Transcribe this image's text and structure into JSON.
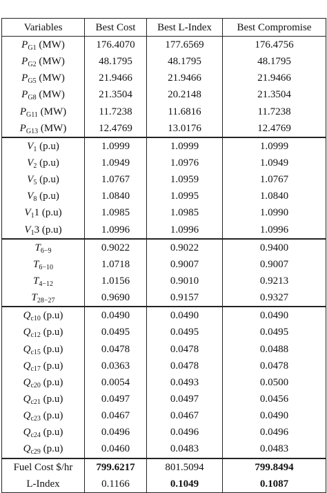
{
  "table": {
    "header": [
      "Variables",
      "Best Cost",
      "Best L-Index",
      "Best Compromise"
    ],
    "groups": [
      {
        "rows": [
          {
            "var": {
              "sym": "P",
              "sub": "G1",
              "rest": " (MW)"
            },
            "values": [
              "176.4070",
              "177.6569",
              "176.4756"
            ]
          },
          {
            "var": {
              "sym": "P",
              "sub": "G2",
              "rest": " (MW)"
            },
            "values": [
              "48.1795",
              "48.1795",
              "48.1795"
            ]
          },
          {
            "var": {
              "sym": "P",
              "sub": "G5",
              "rest": " (MW)"
            },
            "values": [
              "21.9466",
              "21.9466",
              "21.9466"
            ]
          },
          {
            "var": {
              "sym": "P",
              "sub": "G8",
              "rest": " (MW)"
            },
            "values": [
              "21.3504",
              "20.2148",
              "21.3504"
            ]
          },
          {
            "var": {
              "sym": "P",
              "sub": "G11",
              "rest": " (MW)"
            },
            "values": [
              "11.7238",
              "11.6816",
              "11.7238"
            ]
          },
          {
            "var": {
              "sym": "P",
              "sub": "G13",
              "rest": " (MW)"
            },
            "values": [
              "12.4769",
              "13.0176",
              "12.4769"
            ]
          }
        ]
      },
      {
        "rows": [
          {
            "var": {
              "sym": "V",
              "sub": "1",
              "rest": " (p.u)"
            },
            "values": [
              "1.0999",
              "1.0999",
              "1.0999"
            ]
          },
          {
            "var": {
              "sym": "V",
              "sub": "2",
              "rest": " (p.u)"
            },
            "values": [
              "1.0949",
              "1.0976",
              "1.0949"
            ]
          },
          {
            "var": {
              "sym": "V",
              "sub": "5",
              "rest": " (p.u)"
            },
            "values": [
              "1.0767",
              "1.0959",
              "1.0767"
            ]
          },
          {
            "var": {
              "sym": "V",
              "sub": "8",
              "rest": " (p.u)"
            },
            "values": [
              "1.0840",
              "1.0995",
              "1.0840"
            ]
          },
          {
            "var": {
              "sym": "V",
              "sub": "1",
              "rest": "1 (p.u)"
            },
            "values": [
              "1.0985",
              "1.0985",
              "1.0990"
            ]
          },
          {
            "var": {
              "sym": "V",
              "sub": "1",
              "rest": "3 (p.u)"
            },
            "values": [
              "1.0996",
              "1.0996",
              "1.0996"
            ]
          }
        ]
      },
      {
        "rows": [
          {
            "var": {
              "sym": "T",
              "sub": "6−9",
              "rest": ""
            },
            "values": [
              "0.9022",
              "0.9022",
              "0.9400"
            ]
          },
          {
            "var": {
              "sym": "T",
              "sub": "6−10",
              "rest": ""
            },
            "values": [
              "1.0718",
              "0.9007",
              "0.9007"
            ]
          },
          {
            "var": {
              "sym": "T",
              "sub": "4−12",
              "rest": ""
            },
            "values": [
              "1.0156",
              "0.9010",
              "0.9213"
            ]
          },
          {
            "var": {
              "sym": "T",
              "sub": "28−27",
              "rest": ""
            },
            "values": [
              "0.9690",
              "0.9157",
              "0.9327"
            ]
          }
        ]
      },
      {
        "rows": [
          {
            "var": {
              "sym": "Q",
              "sub": "c10",
              "rest": " (p.u)"
            },
            "values": [
              "0.0490",
              "0.0490",
              "0.0490"
            ]
          },
          {
            "var": {
              "sym": "Q",
              "sub": "c12",
              "rest": " (p.u)"
            },
            "values": [
              "0.0495",
              "0.0495",
              "0.0495"
            ]
          },
          {
            "var": {
              "sym": "Q",
              "sub": "c15",
              "rest": " (p.u)"
            },
            "values": [
              "0.0478",
              "0.0478",
              "0.0488"
            ]
          },
          {
            "var": {
              "sym": "Q",
              "sub": "c17",
              "rest": " (p.u)"
            },
            "values": [
              "0.0363",
              "0.0478",
              "0.0478"
            ]
          },
          {
            "var": {
              "sym": "Q",
              "sub": "c20",
              "rest": " (p.u)"
            },
            "values": [
              "0.0054",
              "0.0493",
              "0.0500"
            ]
          },
          {
            "var": {
              "sym": "Q",
              "sub": "c21",
              "rest": " (p.u)"
            },
            "values": [
              "0.0497",
              "0.0497",
              "0.0456"
            ]
          },
          {
            "var": {
              "sym": "Q",
              "sub": "c23",
              "rest": " (p.u)"
            },
            "values": [
              "0.0467",
              "0.0467",
              "0.0490"
            ]
          },
          {
            "var": {
              "sym": "Q",
              "sub": "c24",
              "rest": " (p.u)"
            },
            "values": [
              "0.0496",
              "0.0496",
              "0.0496"
            ]
          },
          {
            "var": {
              "sym": "Q",
              "sub": "c29",
              "rest": " (p.u)"
            },
            "values": [
              "0.0460",
              "0.0483",
              "0.0483"
            ]
          }
        ]
      },
      {
        "rows": [
          {
            "var": {
              "rest": "Fuel Cost $/hr"
            },
            "values": [
              "799.6217",
              "801.5094",
              "799.8494"
            ],
            "bold": [
              true,
              false,
              true
            ]
          },
          {
            "var": {
              "rest": "L-Index"
            },
            "values": [
              "0.1166",
              "0.1049",
              "0.1087"
            ],
            "bold": [
              false,
              true,
              true
            ]
          }
        ]
      }
    ]
  }
}
